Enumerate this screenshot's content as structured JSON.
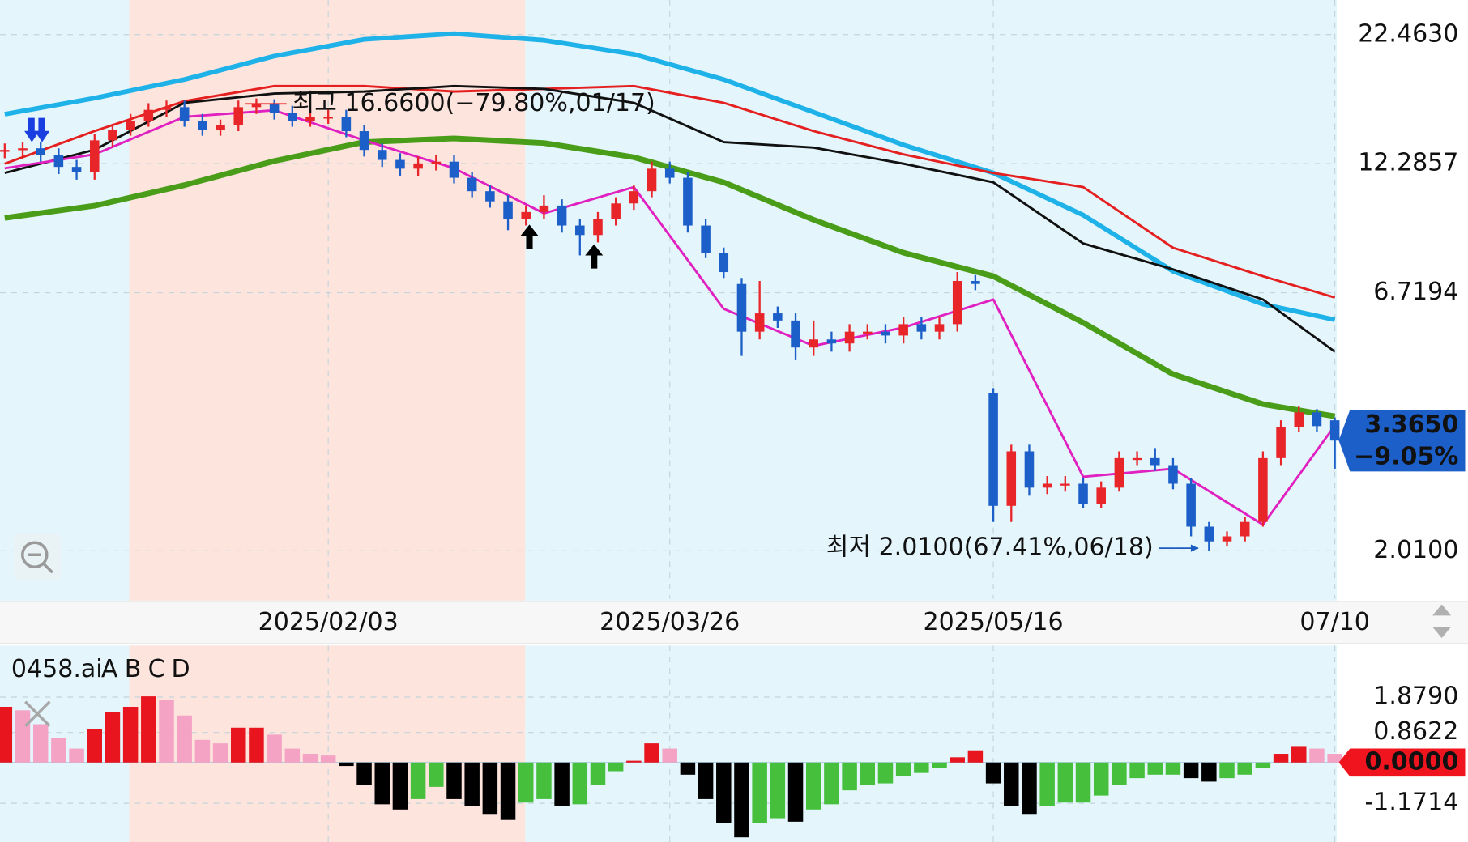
{
  "chart_data": {
    "type": "candlestick",
    "log_scale": true,
    "grid": true,
    "categories": [
      null,
      null,
      null,
      null,
      null,
      null,
      null,
      null,
      null,
      null,
      null,
      null,
      null,
      null,
      null,
      null,
      null,
      null,
      "2025/02/03",
      null,
      null,
      null,
      null,
      null,
      null,
      null,
      null,
      null,
      null,
      null,
      null,
      null,
      null,
      null,
      null,
      null,
      null,
      "2025/03/26",
      null,
      null,
      null,
      null,
      null,
      null,
      null,
      null,
      null,
      null,
      null,
      null,
      null,
      null,
      null,
      null,
      null,
      "2025/05/16",
      null,
      null,
      null,
      null,
      null,
      null,
      null,
      null,
      null,
      null,
      null,
      null,
      null,
      null,
      null,
      null,
      null,
      null,
      "07/10"
    ],
    "open": [
      13.0,
      13.1,
      13.2,
      12.8,
      12.1,
      11.8,
      13.7,
      14.4,
      15.0,
      15.8,
      16.0,
      15.0,
      14.4,
      14.7,
      16.0,
      16.3,
      15.6,
      15.0,
      15.3,
      15.3,
      14.3,
      13.1,
      12.5,
      12.0,
      12.3,
      12.4,
      11.5,
      10.8,
      10.3,
      9.5,
      9.8,
      10.1,
      9.2,
      8.8,
      9.5,
      10.2,
      10.8,
      12.0,
      11.5,
      9.2,
      8.1,
      7.0,
      5.6,
      6.1,
      5.9,
      5.2,
      5.4,
      5.3,
      5.6,
      5.6,
      5.5,
      5.8,
      5.6,
      5.8,
      7.1,
      4.2,
      2.48,
      3.2,
      2.7,
      2.75,
      2.75,
      2.5,
      2.7,
      3.1,
      3.1,
      3.0,
      2.75,
      2.25,
      2.1,
      2.15,
      2.3,
      3.1,
      3.58,
      3.84,
      3.7
    ],
    "high": [
      13.5,
      13.6,
      13.6,
      13.2,
      12.5,
      14.1,
      14.8,
      15.5,
      16.3,
      16.5,
      16.5,
      15.5,
      15.1,
      16.5,
      16.66,
      16.6,
      16.1,
      15.8,
      15.8,
      15.8,
      14.7,
      13.5,
      12.9,
      12.7,
      12.8,
      12.8,
      11.8,
      11.1,
      10.6,
      10.1,
      10.6,
      10.4,
      9.5,
      9.8,
      10.5,
      11.1,
      12.4,
      12.4,
      11.8,
      9.5,
      8.3,
      7.2,
      7.1,
      6.3,
      6.1,
      5.9,
      5.6,
      5.8,
      5.8,
      5.8,
      6.0,
      6.0,
      6.0,
      7.4,
      7.3,
      4.3,
      3.3,
      3.3,
      2.85,
      2.85,
      2.83,
      2.78,
      3.2,
      3.2,
      3.25,
      3.1,
      2.82,
      2.3,
      2.2,
      2.35,
      3.2,
      3.7,
      3.95,
      3.9,
      3.75
    ],
    "low": [
      12.6,
      12.7,
      12.4,
      11.7,
      11.4,
      11.4,
      13.3,
      14.0,
      14.6,
      15.3,
      14.6,
      14.0,
      14.0,
      14.3,
      15.5,
      15.1,
      14.6,
      14.6,
      14.8,
      13.9,
      12.7,
      12.1,
      11.6,
      11.6,
      11.9,
      11.2,
      10.5,
      10.0,
      9.0,
      9.2,
      9.5,
      8.9,
      8.0,
      8.5,
      9.2,
      9.9,
      10.5,
      11.2,
      8.9,
      7.9,
      7.2,
      5.0,
      5.4,
      5.7,
      4.9,
      5.0,
      5.1,
      5.1,
      5.4,
      5.3,
      5.3,
      5.4,
      5.4,
      5.6,
      6.8,
      2.3,
      2.3,
      2.6,
      2.62,
      2.65,
      2.45,
      2.45,
      2.65,
      3.0,
      2.92,
      2.68,
      2.15,
      2.01,
      2.05,
      2.1,
      2.25,
      3.0,
      3.5,
      3.5,
      2.95
    ],
    "close": [
      13.1,
      13.2,
      12.8,
      12.1,
      11.8,
      13.7,
      14.4,
      15.0,
      15.8,
      16.0,
      15.0,
      14.4,
      14.7,
      16.0,
      16.3,
      15.6,
      15.0,
      15.3,
      15.3,
      14.3,
      13.1,
      12.5,
      12.0,
      12.3,
      12.4,
      11.5,
      10.8,
      10.3,
      9.5,
      9.8,
      10.1,
      9.2,
      8.8,
      9.5,
      10.2,
      10.8,
      12.0,
      11.5,
      9.2,
      8.1,
      7.4,
      5.6,
      6.1,
      5.9,
      5.2,
      5.4,
      5.3,
      5.6,
      5.6,
      5.5,
      5.8,
      5.6,
      5.8,
      7.1,
      7.0,
      2.48,
      3.2,
      2.7,
      2.75,
      2.75,
      2.5,
      2.7,
      3.1,
      3.1,
      3.0,
      2.75,
      2.25,
      2.1,
      2.15,
      2.3,
      3.1,
      3.58,
      3.84,
      3.6,
      3.365
    ],
    "up_color": "#e8262a",
    "down_color": "#1d5fc9",
    "series": [
      {
        "color": "#1fb2e8",
        "width": 5,
        "x": [
          0,
          5,
          10,
          15,
          20,
          25,
          30,
          35,
          40,
          45,
          50,
          55,
          60,
          65,
          70,
          74
        ],
        "values": [
          15.48,
          16.69,
          18.21,
          20.31,
          21.97,
          22.56,
          21.88,
          20.49,
          18.21,
          15.63,
          13.41,
          11.76,
          9.66,
          7.43,
          6.37,
          5.92
        ]
      },
      {
        "color": "#e52020",
        "width": 2.5,
        "x": [
          0,
          5,
          10,
          15,
          20,
          25,
          30,
          35,
          40,
          45,
          50,
          55,
          60,
          65,
          70,
          74
        ],
        "values": [
          12.28,
          14.31,
          16.46,
          17.66,
          17.66,
          17.21,
          17.43,
          17.66,
          16.33,
          14.31,
          12.83,
          11.76,
          11.01,
          8.29,
          7.26,
          6.57
        ]
      },
      {
        "color": "#111111",
        "width": 2.5,
        "x": [
          0,
          5,
          10,
          15,
          20,
          25,
          30,
          35,
          40,
          45,
          50,
          55,
          60,
          65,
          70,
          74
        ],
        "values": [
          11.76,
          13.11,
          16.33,
          17.05,
          17.21,
          17.66,
          17.43,
          16.33,
          13.59,
          13.24,
          12.28,
          11.26,
          8.46,
          7.49,
          6.51,
          5.1
        ]
      },
      {
        "color": "#4a9d18",
        "width": 6,
        "x": [
          0,
          5,
          10,
          15,
          20,
          25,
          30,
          35,
          40,
          45,
          50,
          55,
          60,
          65,
          70,
          74
        ],
        "values": [
          9.53,
          10.09,
          11.11,
          12.44,
          13.59,
          13.82,
          13.53,
          12.66,
          11.26,
          9.45,
          8.1,
          7.26,
          5.84,
          4.59,
          3.99,
          3.77
        ]
      },
      {
        "color": "#e020c0",
        "width": 2.5,
        "x": [
          0,
          5,
          10,
          15,
          20,
          25,
          30,
          35,
          40,
          45,
          50,
          55,
          60,
          65,
          70,
          74
        ],
        "values": [
          12.02,
          12.83,
          15.29,
          15.77,
          13.7,
          12.02,
          9.74,
          11.01,
          6.23,
          5.24,
          5.71,
          6.51,
          2.84,
          2.95,
          2.27,
          3.61
        ]
      }
    ],
    "ylim": [
      1.606,
      26.41
    ],
    "yticks": [
      {
        "value": 22.463,
        "label": "22.4630"
      },
      12.2857,
      6.7194,
      {
        "value": 2.01,
        "label": "2.0100"
      }
    ],
    "last_price": {
      "value": 3.365,
      "label": "3.3650"
    },
    "change": {
      "value": -9.05,
      "label": "−9.05%"
    },
    "tag_color": "#1d5fc9",
    "annotations": [
      {
        "text": "최고 16.6600(−79.80%,01/17)",
        "color": "#e8262a"
      },
      {
        "text": "최저 2.0100(67.41%,06/18)",
        "color": "#1a5cc0"
      }
    ],
    "lower_panel": {
      "type": "bar",
      "name": "0458.ai",
      "name_color": "#e8141e",
      "legend": [
        {
          "name": "A",
          "color": "#e8141e"
        },
        {
          "name": "B",
          "color": "#f4a3c4"
        },
        {
          "name": "C",
          "color": "#46c03c"
        },
        {
          "name": "D",
          "color": "#000000"
        }
      ],
      "values": [
        1.6,
        1.5,
        1.1,
        0.7,
        0.4,
        0.95,
        1.45,
        1.6,
        1.9,
        1.8,
        1.35,
        0.65,
        0.55,
        1.0,
        1.0,
        0.8,
        0.4,
        0.25,
        0.2,
        -0.1,
        -0.65,
        -1.2,
        -1.35,
        -1.05,
        -0.7,
        -1.05,
        -1.25,
        -1.5,
        -1.65,
        -1.15,
        -1.05,
        -1.25,
        -1.2,
        -0.65,
        -0.25,
        0.05,
        0.55,
        0.4,
        -0.35,
        -1.05,
        -1.75,
        -2.15,
        -1.75,
        -1.6,
        -1.7,
        -1.35,
        -1.2,
        -0.8,
        -0.65,
        -0.6,
        -0.4,
        -0.3,
        -0.15,
        0.15,
        0.35,
        -0.6,
        -1.25,
        -1.5,
        -1.25,
        -1.15,
        -1.15,
        -0.95,
        -0.65,
        -0.45,
        -0.35,
        -0.35,
        -0.45,
        -0.55,
        -0.45,
        -0.35,
        -0.15,
        0.25,
        0.45,
        0.4,
        0.25
      ],
      "ylim": [
        -2.285,
        3.36
      ],
      "yticks": [
        {
          "value": 1.879,
          "label": "1.8790"
        },
        0.8622,
        {
          "value": 0,
          "label": "0.0000"
        },
        -1.1714
      ],
      "zero_tag_color": "#f0141e"
    }
  }
}
